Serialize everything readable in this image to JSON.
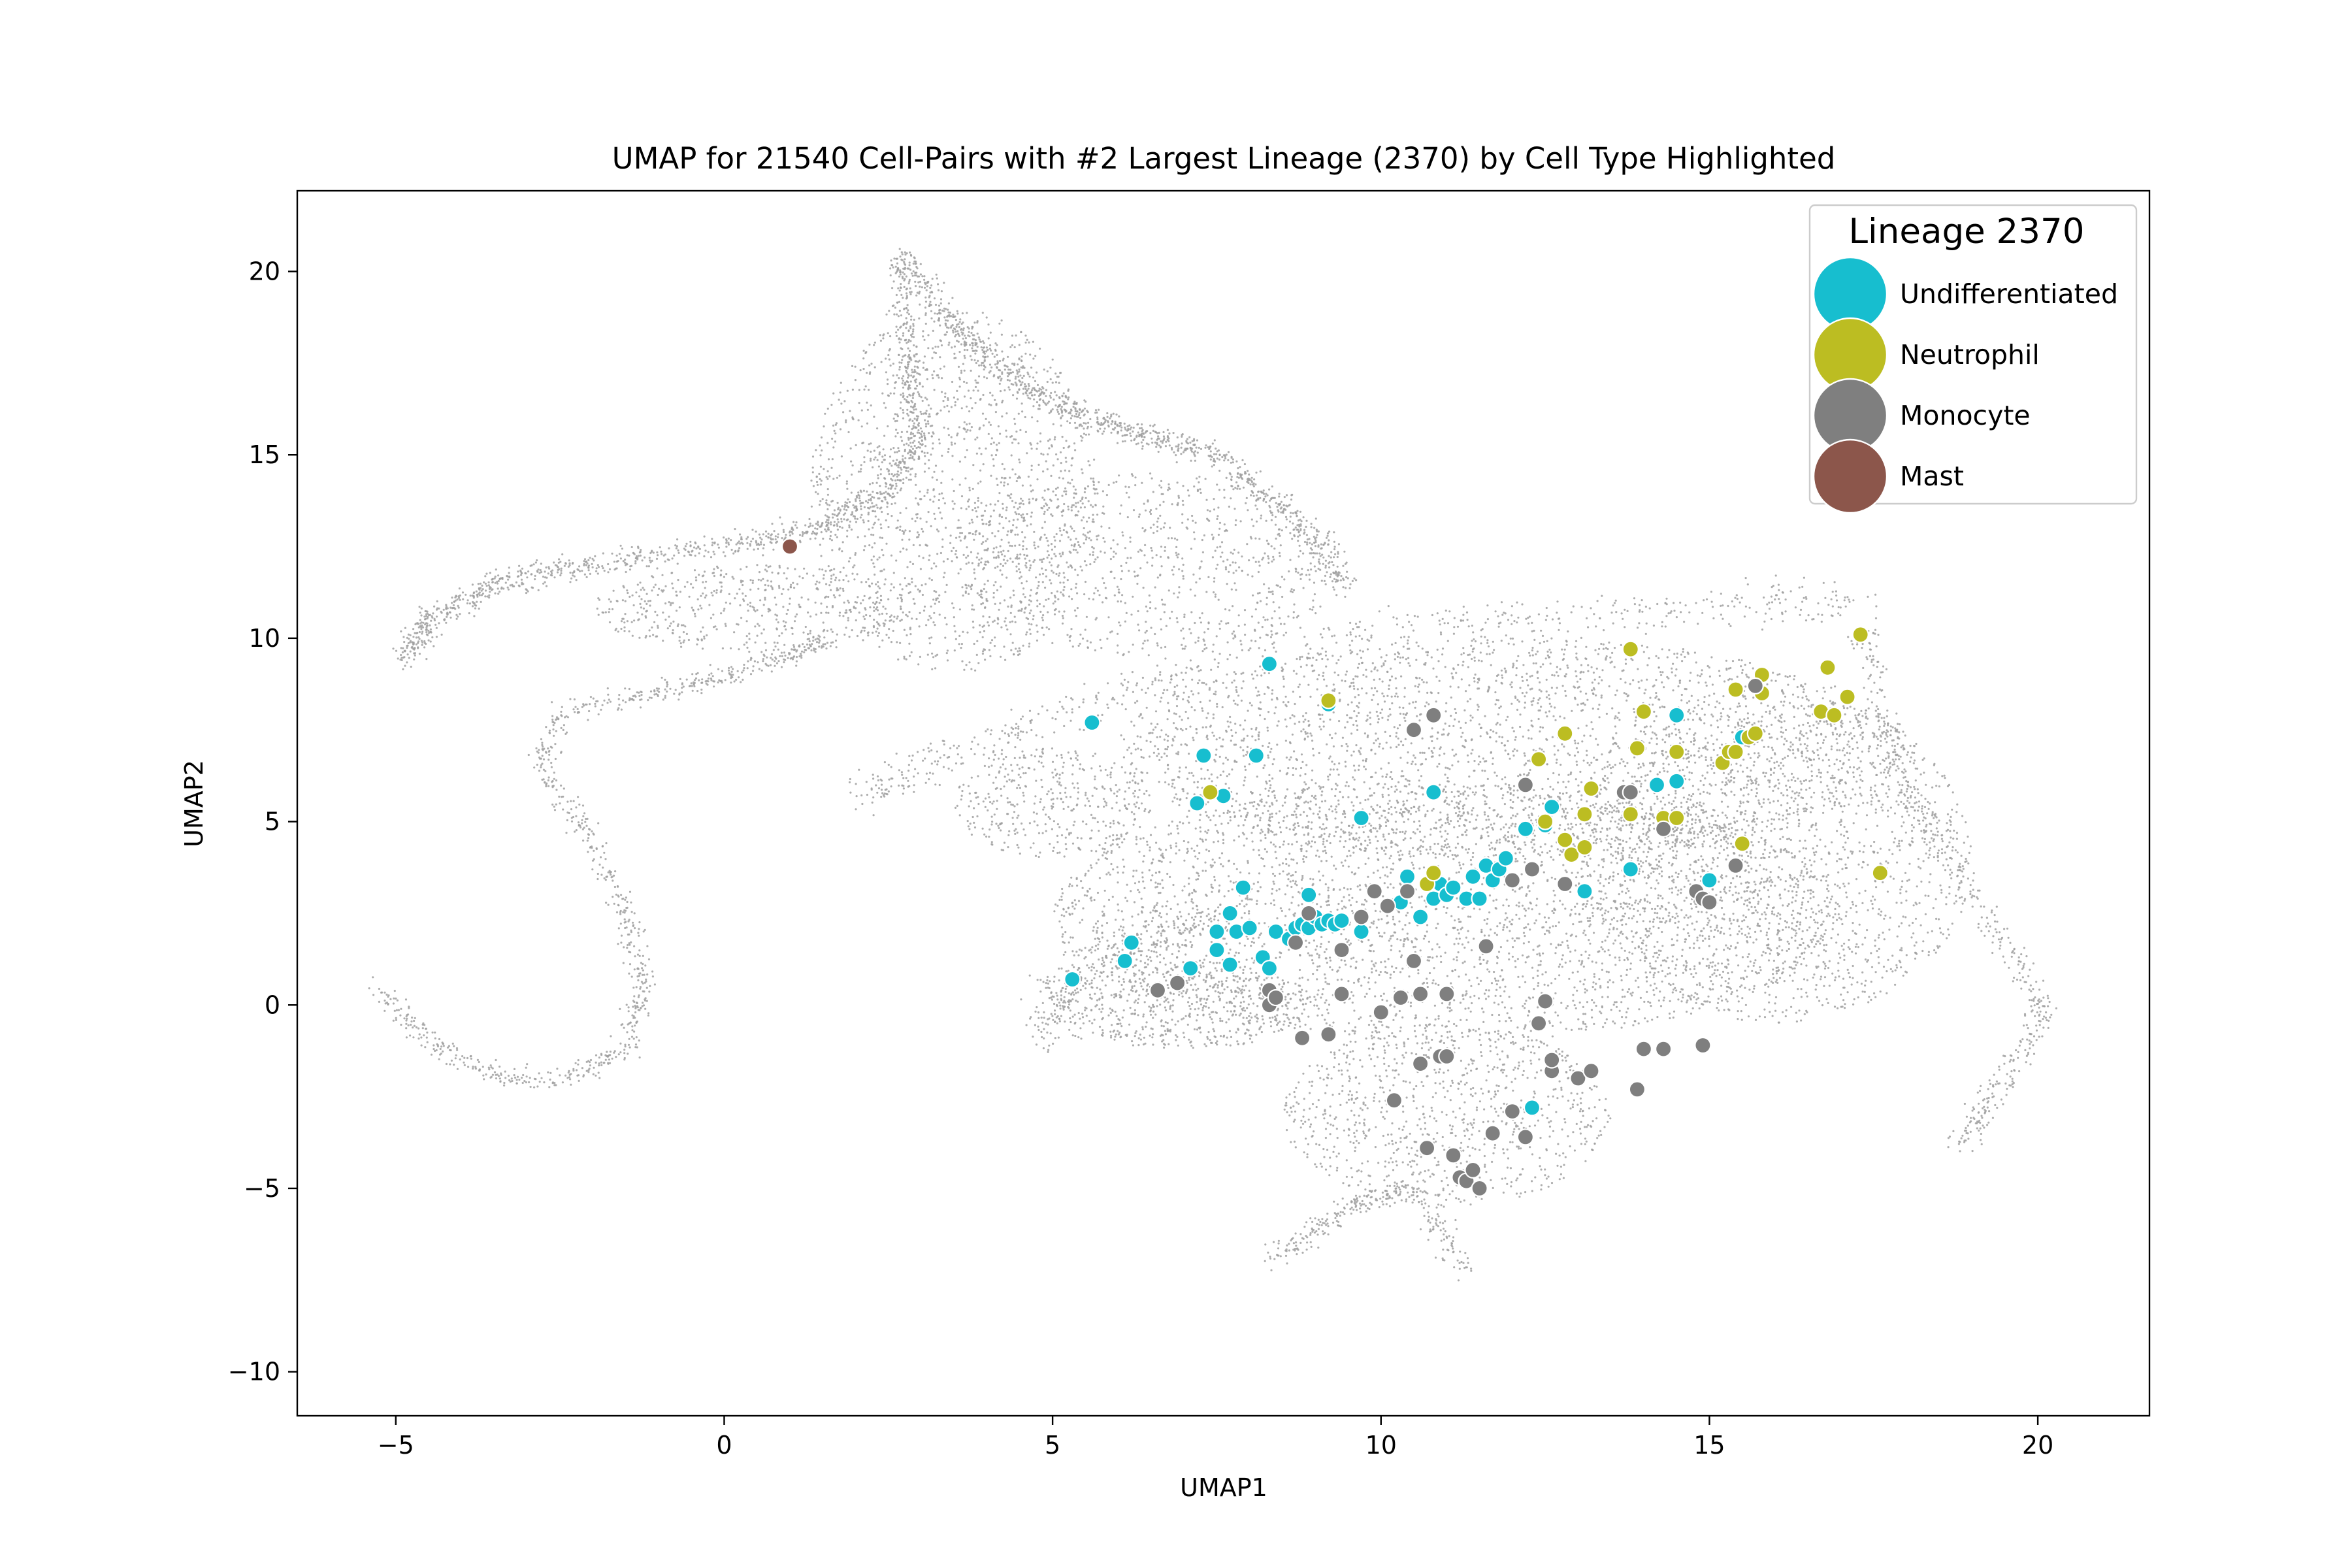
{
  "chart_data": {
    "type": "scatter",
    "title": "UMAP for 21540 Cell-Pairs with #2 Largest Lineage (2370) by Cell Type Highlighted",
    "xlabel": "UMAP1",
    "ylabel": "UMAP2",
    "xlim": [
      -6.5,
      21.7
    ],
    "ylim": [
      -11.2,
      22.2
    ],
    "xticks": [
      -5,
      0,
      5,
      10,
      15,
      20
    ],
    "yticks": [
      -10,
      -5,
      0,
      5,
      10,
      15,
      20
    ],
    "xtick_labels": [
      "−5",
      "0",
      "5",
      "10",
      "15",
      "20"
    ],
    "ytick_labels": [
      "−10",
      "−5",
      "0",
      "5",
      "10",
      "15",
      "20"
    ],
    "grid": false,
    "legend": {
      "title": "Lineage 2370",
      "placement": "top-right"
    },
    "background": {
      "name": "All cell-pairs",
      "count": 21540,
      "color": "#a0a0a0"
    },
    "series": [
      {
        "name": "Undifferentiated",
        "color": "#17becf",
        "points": [
          [
            5.3,
            0.7
          ],
          [
            5.6,
            7.7
          ],
          [
            6.1,
            1.2
          ],
          [
            6.2,
            1.7
          ],
          [
            7.1,
            1.0
          ],
          [
            7.2,
            5.5
          ],
          [
            7.3,
            6.8
          ],
          [
            7.5,
            1.5
          ],
          [
            7.5,
            2.0
          ],
          [
            7.6,
            5.7
          ],
          [
            7.7,
            2.5
          ],
          [
            7.7,
            1.1
          ],
          [
            7.8,
            2.0
          ],
          [
            7.9,
            3.2
          ],
          [
            8.0,
            2.1
          ],
          [
            8.1,
            6.8
          ],
          [
            8.2,
            1.3
          ],
          [
            8.3,
            9.3
          ],
          [
            8.3,
            1.0
          ],
          [
            8.4,
            2.0
          ],
          [
            8.6,
            1.8
          ],
          [
            8.7,
            2.1
          ],
          [
            8.8,
            2.2
          ],
          [
            8.9,
            3.0
          ],
          [
            8.9,
            2.1
          ],
          [
            9.0,
            2.4
          ],
          [
            9.1,
            2.2
          ],
          [
            9.2,
            8.2
          ],
          [
            9.2,
            2.3
          ],
          [
            9.3,
            2.2
          ],
          [
            9.4,
            2.3
          ],
          [
            9.7,
            5.1
          ],
          [
            9.7,
            2.0
          ],
          [
            10.3,
            2.8
          ],
          [
            10.4,
            3.5
          ],
          [
            10.6,
            2.4
          ],
          [
            10.8,
            5.8
          ],
          [
            10.8,
            2.9
          ],
          [
            10.9,
            3.3
          ],
          [
            11.0,
            3.0
          ],
          [
            11.1,
            3.2
          ],
          [
            11.3,
            2.9
          ],
          [
            11.4,
            3.5
          ],
          [
            11.5,
            2.9
          ],
          [
            11.6,
            3.8
          ],
          [
            11.7,
            3.4
          ],
          [
            11.8,
            3.7
          ],
          [
            11.9,
            4.0
          ],
          [
            12.2,
            4.8
          ],
          [
            12.3,
            -2.8
          ],
          [
            12.5,
            4.9
          ],
          [
            12.6,
            5.4
          ],
          [
            13.1,
            3.1
          ],
          [
            13.8,
            3.7
          ],
          [
            14.2,
            6.0
          ],
          [
            14.5,
            7.9
          ],
          [
            14.5,
            6.1
          ],
          [
            15.0,
            3.4
          ],
          [
            15.5,
            7.3
          ]
        ]
      },
      {
        "name": "Neutrophil",
        "color": "#bcbd22",
        "points": [
          [
            7.4,
            5.8
          ],
          [
            9.2,
            8.3
          ],
          [
            10.7,
            3.3
          ],
          [
            10.8,
            3.6
          ],
          [
            12.4,
            6.7
          ],
          [
            12.5,
            5.0
          ],
          [
            12.8,
            7.4
          ],
          [
            12.8,
            4.5
          ],
          [
            12.9,
            4.1
          ],
          [
            13.1,
            4.3
          ],
          [
            13.1,
            5.2
          ],
          [
            13.2,
            5.9
          ],
          [
            13.8,
            9.7
          ],
          [
            13.8,
            5.2
          ],
          [
            13.9,
            7.0
          ],
          [
            14.0,
            8.0
          ],
          [
            14.3,
            5.1
          ],
          [
            14.5,
            5.1
          ],
          [
            14.5,
            6.9
          ],
          [
            15.2,
            6.6
          ],
          [
            15.3,
            6.9
          ],
          [
            15.4,
            6.9
          ],
          [
            15.4,
            8.6
          ],
          [
            15.5,
            4.4
          ],
          [
            15.6,
            7.3
          ],
          [
            15.7,
            7.4
          ],
          [
            15.8,
            9.0
          ],
          [
            15.8,
            8.5
          ],
          [
            16.7,
            8.0
          ],
          [
            16.8,
            9.2
          ],
          [
            16.9,
            7.9
          ],
          [
            17.1,
            8.4
          ],
          [
            17.3,
            10.1
          ],
          [
            17.6,
            3.6
          ]
        ]
      },
      {
        "name": "Monocyte",
        "color": "#7f7f7f",
        "points": [
          [
            6.6,
            0.4
          ],
          [
            6.9,
            0.6
          ],
          [
            8.3,
            0.4
          ],
          [
            8.3,
            0.0
          ],
          [
            8.4,
            0.2
          ],
          [
            8.7,
            1.7
          ],
          [
            8.8,
            -0.9
          ],
          [
            8.9,
            2.5
          ],
          [
            9.2,
            -0.8
          ],
          [
            9.4,
            1.5
          ],
          [
            9.4,
            0.3
          ],
          [
            9.7,
            2.4
          ],
          [
            9.9,
            3.1
          ],
          [
            10.0,
            -0.2
          ],
          [
            10.1,
            2.7
          ],
          [
            10.2,
            -2.6
          ],
          [
            10.3,
            0.2
          ],
          [
            10.4,
            3.1
          ],
          [
            10.5,
            7.5
          ],
          [
            10.5,
            1.2
          ],
          [
            10.6,
            0.3
          ],
          [
            10.6,
            -1.6
          ],
          [
            10.7,
            -3.9
          ],
          [
            10.8,
            7.9
          ],
          [
            10.9,
            -1.4
          ],
          [
            11.0,
            -1.4
          ],
          [
            11.0,
            0.3
          ],
          [
            11.1,
            -4.1
          ],
          [
            11.2,
            -4.7
          ],
          [
            11.3,
            -4.8
          ],
          [
            11.4,
            -4.5
          ],
          [
            11.5,
            -5.0
          ],
          [
            11.6,
            1.6
          ],
          [
            11.7,
            -3.5
          ],
          [
            12.0,
            -2.9
          ],
          [
            12.0,
            3.4
          ],
          [
            12.2,
            6.0
          ],
          [
            12.2,
            -3.6
          ],
          [
            12.3,
            3.7
          ],
          [
            12.4,
            -0.5
          ],
          [
            12.5,
            0.1
          ],
          [
            12.6,
            -1.8
          ],
          [
            12.6,
            -1.5
          ],
          [
            12.8,
            3.3
          ],
          [
            13.0,
            -2.0
          ],
          [
            13.2,
            -1.8
          ],
          [
            13.7,
            5.8
          ],
          [
            13.8,
            5.8
          ],
          [
            13.9,
            -2.3
          ],
          [
            14.0,
            -1.2
          ],
          [
            14.3,
            -1.2
          ],
          [
            14.3,
            4.8
          ],
          [
            14.8,
            3.1
          ],
          [
            14.9,
            2.9
          ],
          [
            14.9,
            -1.1
          ],
          [
            15.0,
            2.8
          ],
          [
            15.4,
            3.8
          ],
          [
            15.7,
            8.7
          ]
        ]
      },
      {
        "name": "Mast",
        "color": "#8c564b",
        "points": [
          [
            1.0,
            12.5
          ]
        ]
      }
    ]
  }
}
